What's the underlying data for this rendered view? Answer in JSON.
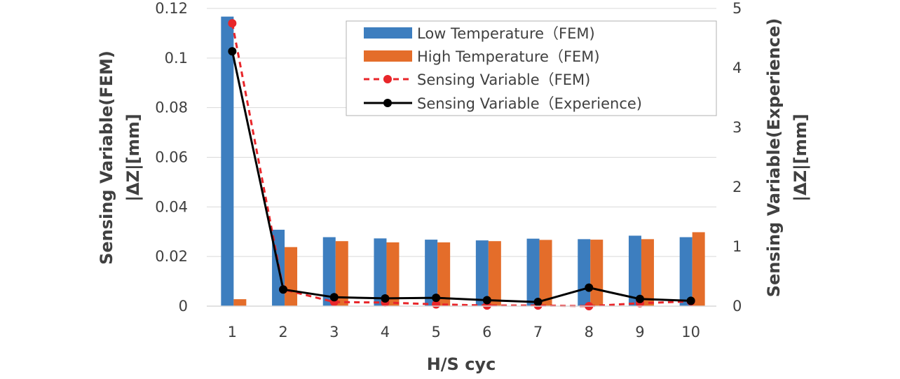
{
  "chart_data": {
    "type": "bar",
    "xlabel": "H/S cyc",
    "ylabel_left": [
      "Sensing Variable(FEM)",
      "|ΔZ|[mm]"
    ],
    "ylabel_right": [
      "Sensing Variable(Experience)",
      "|ΔZ|[mm]"
    ],
    "categories": [
      "1",
      "2",
      "3",
      "4",
      "5",
      "6",
      "7",
      "8",
      "9",
      "10"
    ],
    "y_left_ticks": [
      "0",
      "0.02",
      "0.04",
      "0.06",
      "0.08",
      "0.1",
      "0.12"
    ],
    "y_right_ticks": [
      "0",
      "1",
      "2",
      "3",
      "4",
      "5"
    ],
    "ylim_left": [
      0,
      0.12
    ],
    "ylim_right": [
      0,
      5
    ],
    "grid": true,
    "legend_position": "top-right",
    "series": [
      {
        "name": "Low Temperature（FEM)",
        "kind": "bar",
        "axis": "left",
        "color": "#3d7ebf",
        "values": [
          0.1167,
          0.0308,
          0.0278,
          0.0273,
          0.0268,
          0.0265,
          0.0272,
          0.027,
          0.0284,
          0.0278
        ]
      },
      {
        "name": "High Temperature（FEM)",
        "kind": "bar",
        "axis": "left",
        "color": "#e46d2a",
        "values": [
          0.0028,
          0.0238,
          0.0262,
          0.0257,
          0.0257,
          0.0262,
          0.0267,
          0.0268,
          0.027,
          0.0298
        ]
      },
      {
        "name": "Sensing Variable（FEM)",
        "kind": "line",
        "axis": "right",
        "color": "#e8262a",
        "dashed": true,
        "values": [
          4.75,
          0.28,
          0.07,
          0.06,
          0.03,
          0.01,
          0.01,
          0.0,
          0.05,
          0.08
        ]
      },
      {
        "name": "Sensing Variable（Experience)",
        "kind": "line",
        "axis": "right",
        "color": "#000000",
        "dashed": false,
        "values": [
          4.28,
          0.28,
          0.15,
          0.13,
          0.14,
          0.1,
          0.07,
          0.31,
          0.12,
          0.09
        ]
      }
    ]
  }
}
